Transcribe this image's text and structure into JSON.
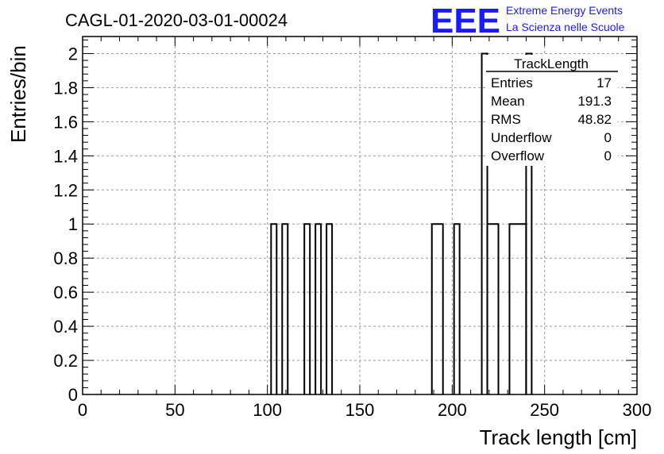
{
  "header": {
    "run_title": "CAGL-01-2020-03-01-00024",
    "logo_text": "EEE",
    "logo_line1": "Extreme Energy Events",
    "logo_line2": "La Scienza nelle Scuole",
    "logo_color": "#1a1aff"
  },
  "stats_box": {
    "title": "TrackLength",
    "rows": [
      {
        "label": "Entries",
        "value": "17"
      },
      {
        "label": "Mean",
        "value": "191.3"
      },
      {
        "label": "RMS",
        "value": "48.82"
      },
      {
        "label": "Underflow",
        "value": "0"
      },
      {
        "label": "Overflow",
        "value": "0"
      }
    ]
  },
  "chart_data": {
    "type": "bar",
    "style": "step-histogram",
    "title": "CAGL-01-2020-03-01-00024",
    "xlabel": "Track length [cm]",
    "ylabel": "Entries/bin",
    "xlim": [
      0,
      300
    ],
    "ylim": [
      0,
      2.1
    ],
    "grid": true,
    "bin_width": 3,
    "x_ticks": [
      "0",
      "50",
      "100",
      "150",
      "200",
      "250",
      "300"
    ],
    "y_ticks": [
      "0",
      "0.2",
      "0.4",
      "0.6",
      "0.8",
      "1",
      "1.2",
      "1.4",
      "1.6",
      "1.8",
      "2"
    ],
    "bins": [
      {
        "x0": 102,
        "x1": 105,
        "value": 1
      },
      {
        "x0": 108,
        "x1": 111,
        "value": 1
      },
      {
        "x0": 120,
        "x1": 123,
        "value": 1
      },
      {
        "x0": 126,
        "x1": 129,
        "value": 1
      },
      {
        "x0": 132,
        "x1": 135,
        "value": 1
      },
      {
        "x0": 189,
        "x1": 195,
        "value": 1
      },
      {
        "x0": 201,
        "x1": 204,
        "value": 1
      },
      {
        "x0": 216,
        "x1": 219,
        "value": 2
      },
      {
        "x0": 219,
        "x1": 225,
        "value": 1
      },
      {
        "x0": 231,
        "x1": 240,
        "value": 1
      },
      {
        "x0": 240,
        "x1": 243,
        "value": 2
      }
    ]
  }
}
